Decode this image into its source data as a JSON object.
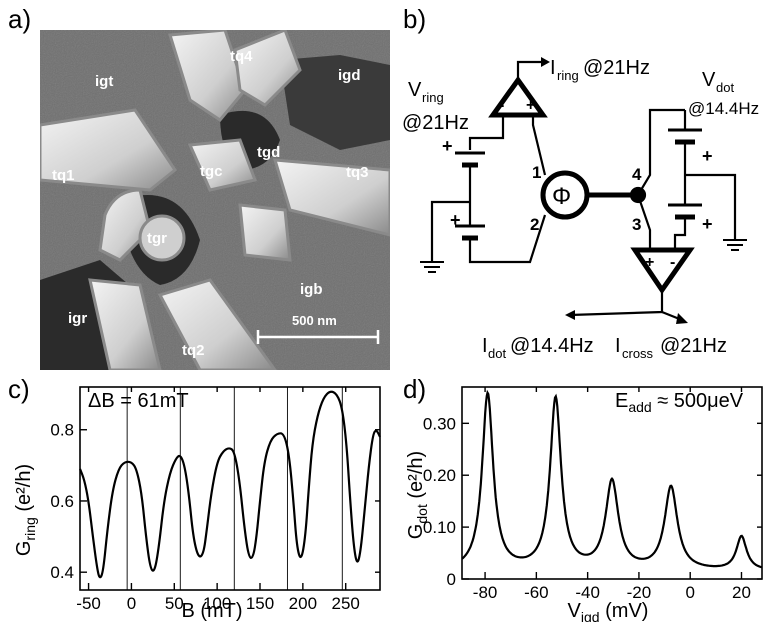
{
  "figure": {
    "panels": {
      "a": "a)",
      "b": "b)",
      "c": "c)",
      "d": "d)"
    }
  },
  "micrograph": {
    "labels": {
      "igt": "igt",
      "tq4": "tq4",
      "igd": "igd",
      "tgd": "tgd",
      "tgc": "tgc",
      "tq3": "tq3",
      "tq1": "tq1",
      "tgr": "tgr",
      "igb": "igb",
      "igr": "igr",
      "tq2": "tq2"
    },
    "scale_bar": "500 nm"
  },
  "circuit": {
    "i_ring_main": "I",
    "i_ring_sub": "ring",
    "i_ring_freq": "@21Hz",
    "v_ring_main": "V",
    "v_ring_sub": "ring",
    "v_ring_freq": "@21Hz",
    "v_dot_main": "V",
    "v_dot_sub": "dot",
    "v_dot_freq": "@14.4Hz",
    "phi": "Φ",
    "node1": "1",
    "node2": "2",
    "node3": "3",
    "node4": "4",
    "i_dot_main": "I",
    "i_dot_sub": "dot",
    "i_dot_freq": "@14.4Hz",
    "i_cross_main": "I",
    "i_cross_sub": "cross",
    "i_cross_freq": "@21Hz",
    "plus": "+",
    "minus": "-"
  },
  "chart_data": [
    {
      "type": "line",
      "panel": "c",
      "annotation": "ΔB = 61mT",
      "xlabel": "B (mT)",
      "ylabel_main": "G",
      "ylabel_sub": "ring",
      "ylabel_unit": " (e²/h)",
      "xlim": [
        -60,
        290
      ],
      "ylim": [
        0.35,
        0.92
      ],
      "xticks": [
        -50,
        0,
        50,
        100,
        150,
        200,
        250
      ],
      "xtick_labels": [
        "-50",
        "0",
        "50",
        "100",
        "150",
        "200",
        "250"
      ],
      "yticks": [
        0.4,
        0.6,
        0.8
      ],
      "ytick_labels": [
        "0.4",
        "0.6",
        "0.8"
      ],
      "vlines": [
        -5,
        57,
        120,
        182,
        246
      ],
      "x": [
        -60,
        -55,
        -50,
        -45,
        -40,
        -37,
        -33,
        -28,
        -22,
        -15,
        -8,
        0,
        6,
        12,
        17,
        22,
        27,
        32,
        38,
        45,
        52,
        57,
        62,
        67,
        72,
        78,
        84,
        88,
        93,
        100,
        107,
        114,
        120,
        126,
        132,
        137,
        142,
        146,
        150,
        155,
        162,
        170,
        178,
        184,
        189,
        193,
        198,
        203,
        207,
        211,
        217,
        224,
        232,
        240,
        246,
        251,
        255,
        259,
        263,
        267,
        272,
        277,
        282,
        286,
        290
      ],
      "y": [
        0.69,
        0.66,
        0.6,
        0.5,
        0.41,
        0.38,
        0.4,
        0.52,
        0.63,
        0.69,
        0.71,
        0.71,
        0.69,
        0.62,
        0.5,
        0.41,
        0.4,
        0.47,
        0.6,
        0.68,
        0.72,
        0.73,
        0.7,
        0.62,
        0.5,
        0.44,
        0.45,
        0.52,
        0.62,
        0.71,
        0.74,
        0.75,
        0.74,
        0.66,
        0.52,
        0.44,
        0.44,
        0.5,
        0.6,
        0.71,
        0.77,
        0.79,
        0.79,
        0.73,
        0.6,
        0.47,
        0.43,
        0.5,
        0.64,
        0.76,
        0.84,
        0.89,
        0.91,
        0.9,
        0.86,
        0.76,
        0.61,
        0.48,
        0.42,
        0.45,
        0.57,
        0.7,
        0.79,
        0.8,
        0.78
      ]
    },
    {
      "type": "line",
      "panel": "d",
      "annotation_main": "E",
      "annotation_sub": "add",
      "annotation_rest": " ≈ 500μeV",
      "xlabel_main": "V",
      "xlabel_sub": "igd",
      "xlabel_unit": " (mV)",
      "ylabel_main": "G",
      "ylabel_sub": "dot",
      "ylabel_unit": " (e²/h)",
      "xlim": [
        -89,
        28
      ],
      "ylim": [
        0,
        0.37
      ],
      "xticks": [
        -80,
        -60,
        -40,
        -20,
        0,
        20
      ],
      "xtick_labels": [
        "-80",
        "-60",
        "-40",
        "-20",
        "0",
        "20"
      ],
      "yticks": [
        0,
        0.1,
        0.2,
        0.3
      ],
      "ytick_labels": [
        "0",
        "0.10",
        "0.20",
        "0.30"
      ],
      "peaks": [
        {
          "center": -79,
          "height": 0.34,
          "width": 2.6
        },
        {
          "center": -52.5,
          "height": 0.33,
          "width": 2.6
        },
        {
          "center": -30.5,
          "height": 0.17,
          "width": 3.0
        },
        {
          "center": -7.5,
          "height": 0.16,
          "width": 3.0
        },
        {
          "center": 20,
          "height": 0.065,
          "width": 2.4
        }
      ],
      "baseline": 0.015
    }
  ]
}
